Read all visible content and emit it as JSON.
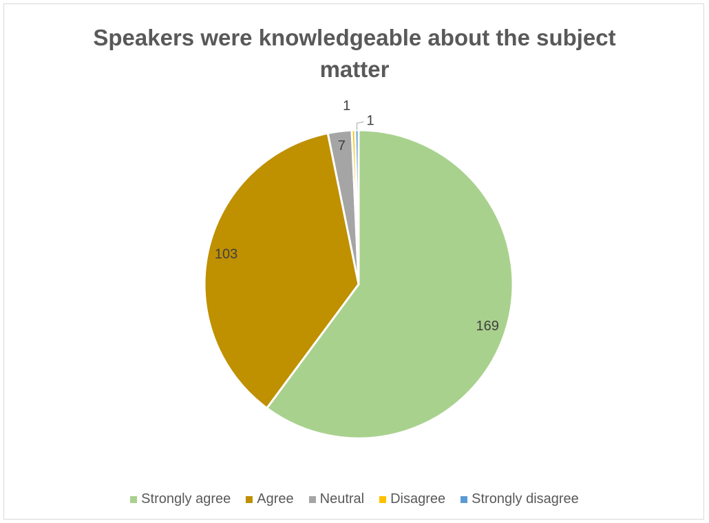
{
  "chart_data": {
    "type": "pie",
    "title_lines": [
      "Speakers were knowledgeable about the subject",
      "matter"
    ],
    "categories": [
      "Strongly agree",
      "Agree",
      "Neutral",
      "Disagree",
      "Strongly disagree"
    ],
    "values": [
      169,
      103,
      7,
      1,
      1
    ],
    "colors": [
      "#a9d18e",
      "#bf9000",
      "#a5a5a5",
      "#ffc000",
      "#5b9bd5"
    ],
    "legend_position": "bottom",
    "start_angle_deg": 0,
    "direction": "clockwise"
  }
}
